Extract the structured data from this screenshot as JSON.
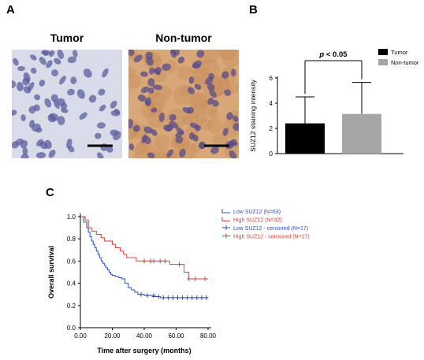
{
  "panels": {
    "a": {
      "letter": "A",
      "images": [
        {
          "title": "Tumor",
          "background": "#d9dbe8",
          "cell_color": "#5a5f9e"
        },
        {
          "title": "Non-tumor",
          "background": "#d8a878",
          "cell_color": "#5a4c8a"
        }
      ]
    },
    "b": {
      "letter": "B"
    },
    "c": {
      "letter": "C"
    }
  },
  "chart_data": [
    {
      "type": "bar",
      "ylabel": "SUZ12 staining intensity",
      "xlabel": "",
      "categories": [
        "Tumor",
        "Non-tumor"
      ],
      "values": [
        2.4,
        3.15
      ],
      "errors": [
        2.1,
        2.5
      ],
      "colors": [
        "#000000",
        "#a6a6a6"
      ],
      "ylim": [
        0,
        6
      ],
      "yticks": [
        "0",
        "2",
        "4",
        "6"
      ],
      "significance": "p < 0.05",
      "legend": [
        "Tumor",
        "Non-tumor"
      ],
      "legend_position": "top-right"
    },
    {
      "type": "line",
      "xlabel": "Time after surgery (months)",
      "ylabel": "Overall survival",
      "xlim": [
        0,
        80
      ],
      "ylim": [
        0,
        1
      ],
      "xticks": [
        "0.00",
        "20.00",
        "40.00",
        "60.00",
        "80.00"
      ],
      "yticks": [
        "0.0",
        "0.2",
        "0.4",
        "0.6",
        "0.8",
        "1.0"
      ],
      "legend_position": "top-right",
      "series": [
        {
          "name": "Low  SUZ12 (N=63)",
          "color": "#2f4fb5",
          "x": [
            0,
            2,
            4,
            5,
            6,
            7,
            8,
            9,
            10,
            11,
            12,
            13,
            14,
            15,
            16,
            17,
            18,
            19,
            20,
            22,
            24,
            26,
            28,
            30,
            32,
            34,
            36,
            38,
            40,
            45,
            50,
            55,
            60,
            65,
            70,
            75,
            80
          ],
          "y": [
            1.0,
            0.95,
            0.9,
            0.86,
            0.82,
            0.78,
            0.75,
            0.72,
            0.69,
            0.66,
            0.63,
            0.6,
            0.58,
            0.56,
            0.54,
            0.52,
            0.5,
            0.48,
            0.47,
            0.46,
            0.45,
            0.44,
            0.4,
            0.36,
            0.34,
            0.32,
            0.3,
            0.3,
            0.29,
            0.28,
            0.27,
            0.27,
            0.27,
            0.27,
            0.27,
            0.27,
            0.27
          ]
        },
        {
          "name": "High SUZ12 (N=32)",
          "color": "#d9403a",
          "x": [
            0,
            3,
            5,
            7,
            10,
            13,
            15,
            18,
            20,
            22,
            25,
            27,
            29,
            32,
            35,
            38,
            43,
            48,
            52,
            56,
            60,
            65,
            68,
            72,
            80
          ],
          "y": [
            1.0,
            0.97,
            0.9,
            0.87,
            0.84,
            0.81,
            0.78,
            0.78,
            0.75,
            0.72,
            0.69,
            0.66,
            0.63,
            0.63,
            0.6,
            0.6,
            0.6,
            0.6,
            0.6,
            0.57,
            0.57,
            0.5,
            0.44,
            0.44,
            0.44
          ]
        },
        {
          "name": "Low  SUZ12 - censored (N=17)",
          "color": "#2f4fb5",
          "marker": "+",
          "x": [
            38,
            42,
            46,
            49,
            52,
            55,
            58,
            61,
            64,
            67,
            70,
            73,
            76,
            79
          ],
          "y": [
            0.3,
            0.29,
            0.29,
            0.28,
            0.27,
            0.27,
            0.27,
            0.27,
            0.27,
            0.27,
            0.27,
            0.27,
            0.27,
            0.27
          ]
        },
        {
          "name": "High SUZ12 - censored (N=17)",
          "color": "#d9403a",
          "marker": "+",
          "x": [
            40,
            44,
            46,
            50,
            53,
            62,
            68,
            72,
            78
          ],
          "y": [
            0.6,
            0.6,
            0.6,
            0.6,
            0.6,
            0.57,
            0.44,
            0.44,
            0.44
          ]
        }
      ]
    }
  ]
}
